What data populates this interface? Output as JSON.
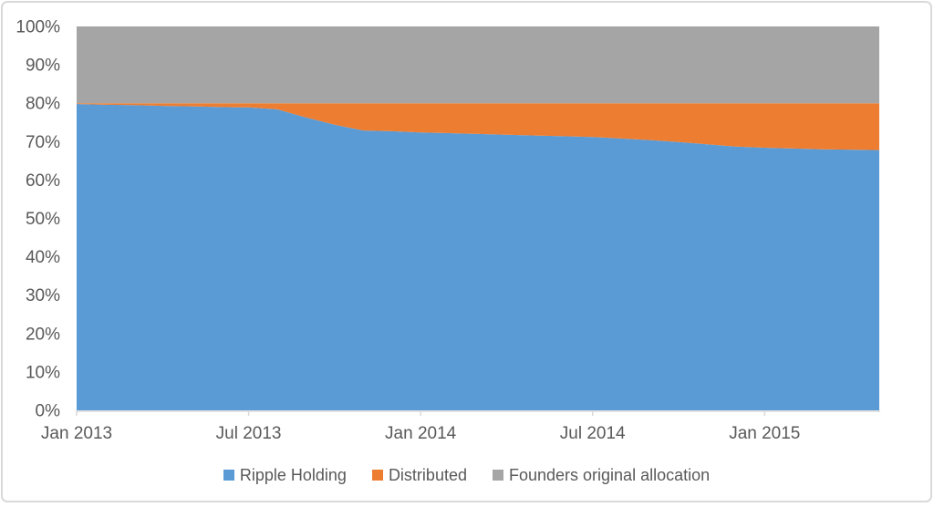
{
  "chart_data": {
    "type": "area",
    "stacked": true,
    "title": "",
    "xlabel": "",
    "ylabel": "",
    "ylim": [
      0,
      100
    ],
    "grid": false,
    "legend_position": "bottom",
    "x": [
      "Jan 2013",
      "Feb 2013",
      "Mar 2013",
      "Apr 2013",
      "May 2013",
      "Jun 2013",
      "Jul 2013",
      "Aug 2013",
      "Sep 2013",
      "Oct 2013",
      "Nov 2013",
      "Dec 2013",
      "Jan 2014",
      "Feb 2014",
      "Mar 2014",
      "Apr 2014",
      "May 2014",
      "Jun 2014",
      "Jul 2014",
      "Aug 2014",
      "Sep 2014",
      "Oct 2014",
      "Nov 2014",
      "Dec 2014",
      "Jan 2015",
      "Feb 2015",
      "Mar 2015",
      "Apr 2015",
      "May 2015"
    ],
    "x_tick_labels": [
      "Jan 2013",
      "Jul 2013",
      "Jan 2014",
      "Jul 2014",
      "Jan 2015"
    ],
    "y_tick_labels": [
      "0%",
      "10%",
      "20%",
      "30%",
      "40%",
      "50%",
      "60%",
      "70%",
      "80%",
      "90%",
      "100%"
    ],
    "series": [
      {
        "name": "Ripple Holding",
        "color": "#5B9BD5",
        "values": [
          79.8,
          79.6,
          79.5,
          79.3,
          79.2,
          79.0,
          78.9,
          78.4,
          76.3,
          74.4,
          72.9,
          72.7,
          72.4,
          72.2,
          72.0,
          71.8,
          71.6,
          71.4,
          71.2,
          70.8,
          70.4,
          69.9,
          69.3,
          68.7,
          68.4,
          68.2,
          68.0,
          67.9,
          67.8
        ]
      },
      {
        "name": "Distributed",
        "color": "#ED7D31",
        "values": [
          0.2,
          0.4,
          0.5,
          0.7,
          0.8,
          1.0,
          1.1,
          1.6,
          3.7,
          5.6,
          7.1,
          7.3,
          7.6,
          7.8,
          8.0,
          8.2,
          8.4,
          8.6,
          8.8,
          9.2,
          9.6,
          10.1,
          10.7,
          11.3,
          11.6,
          11.8,
          12.0,
          12.1,
          12.2
        ]
      },
      {
        "name": "Founders original allocation",
        "color": "#A5A5A5",
        "values": [
          20,
          20,
          20,
          20,
          20,
          20,
          20,
          20,
          20,
          20,
          20,
          20,
          20,
          20,
          20,
          20,
          20,
          20,
          20,
          20,
          20,
          20,
          20,
          20,
          20,
          20,
          20,
          20,
          20
        ]
      }
    ]
  },
  "colors": {
    "axis_text": "#595959",
    "axis_line": "#D9D9D9",
    "background": "#FFFFFF",
    "border": "#D9D9D9"
  }
}
